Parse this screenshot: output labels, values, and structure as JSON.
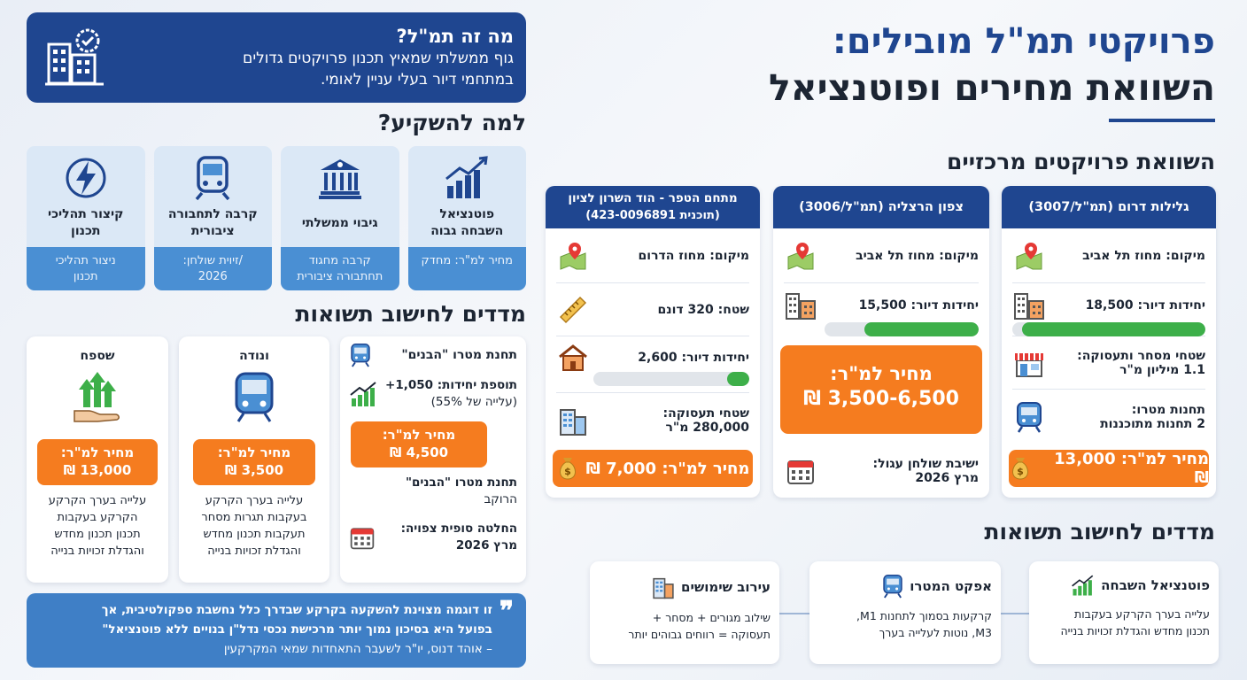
{
  "title": {
    "line1": "פרויקטי תמ\"ל מובילים:",
    "line2": "השוואת מחירים ופוטנציאל"
  },
  "what_is": {
    "heading": "מה זה תמ\"ל?",
    "body_line1": "גוף ממשלתי שמאיץ תכנון פרויקטים גדולים",
    "body_line2": "במתחמי דיור בעלי עניין לאומי."
  },
  "why_invest": {
    "heading": "למה להשקיע?",
    "tiles": [
      {
        "label": "פוטנציאל השבחה גבוה",
        "sub": "מחיר למ\"ר: מחדק",
        "icon": "chart-up-icon"
      },
      {
        "label": "גיבוי ממשלתי",
        "sub": "קרבה מחגוד תחתבורה ציבורית",
        "icon": "government-building-icon"
      },
      {
        "label": "קרבה לתחבורה ציבורית",
        "sub": "/זיוית שולחן: 2026",
        "icon": "train-icon"
      },
      {
        "label": "קיצור תהליכי תכנון",
        "sub": "ניצור תהליכי תכנון",
        "icon": "lightning-icon"
      }
    ]
  },
  "projects": {
    "heading": "השוואת פרויקטים מרכזיים",
    "p1": {
      "title": "גלילות דרום (תמ\"ל/3007)",
      "location": "מיקום: מחוז תל אביב",
      "units": "יחידות דיור: 18,500",
      "units_fill": 0.95,
      "commerce_l1": "שטחי מסחר ותעסוקה:",
      "commerce_l2": "1.1 מיליון מ\"ר",
      "metro_l1": "תחנות מטרו:",
      "metro_l2": "2 תחנות מתוכננות",
      "price": "מחיר למ\"ר: 13,000 ₪"
    },
    "p2": {
      "title": "צפון הרצליה (תמ\"ל/3006)",
      "location": "מיקום: מחוז תל אביב",
      "units": "יחידות דיור: 15,500",
      "units_fill": 0.74,
      "price_l1": "מחיר למ\"ר:",
      "price_l2": "3,500-6,500 ₪",
      "round_l1": "ישיבת שולחן עגול:",
      "round_l2": "מרץ 2026"
    },
    "p3": {
      "title_l1": "מתחם הטפר - הוד השרון לציון",
      "title_l2": "(תוכנית 423-0096891)",
      "location": "מיקום: מחוז הדרום",
      "area": "שטח: 320 דונם",
      "units": "יחידות דיור: 2,600",
      "units_fill": 0.14,
      "employment_l1": "שטחי תעסוקה:",
      "employment_l2": "280,000 מ\"ר",
      "price": "מחיר למ\"ר: 7,000 ₪"
    }
  },
  "metrics_left": {
    "heading": "מדדים לחישוב תשואות",
    "col1": {
      "title": "תחנת מטרו \"הבנים\"",
      "add_l1": "תוספת יחידות: 1,050+",
      "add_l2": "(עלייה של 55%)",
      "price_l1": "מחיר למ\"ר:",
      "price_l2": "4,500 ₪",
      "station_l1": "תחנת מטרו \"הבנים\"",
      "station_l2": "הרוקב",
      "decision_l1": "החלטה סופית צפויה:",
      "decision_l2": "מרץ 2026"
    },
    "col2": {
      "title": "ונודה",
      "price_l1": "מחיר למ\"ר:",
      "price_l2": "3,500 ₪",
      "desc": [
        "עלייה בערך הקרקע",
        "בעקבות תגרות מסחר",
        "תעקבות תכנון מחדש",
        "והגדלת זכויות בנייה"
      ]
    },
    "col3": {
      "title": "שספח",
      "price_l1": "מחיר למ\"ר:",
      "price_l2": "13,000 ₪",
      "desc": [
        "עלייה בערך הקרקע",
        "הקרקע בעקבות",
        "תכנון תכנון מחדש",
        "והגדלת זכויות בנייה"
      ]
    }
  },
  "quote": {
    "line1": "זו דוגמה מצוינת להשקעה בקרקע שבדרך כלל נחשבת ספקולטיבית, אך",
    "line2": "בפועל היא בסיכון נמוך יותר מרכישת נכסי נדל\"ן בנויים ללא פוטנציאל\"",
    "line3": "– אוהד דנוס, יו\"ר לשעבר התאחדות שמאי המקרקעין"
  },
  "metrics_bottom": {
    "heading": "מדדים לחישוב תשואות",
    "items": [
      {
        "title": "פוטנציאל השבחה",
        "l1": "עלייה בערך הקרקע בעקבות",
        "l2": "תכנון מחדש והגדלת זכויות בנייה"
      },
      {
        "title": "אפקט המטרו",
        "l1": "קרקעות בסמוך לתחנות M1,",
        "l2": "M3, נוטות לעלייה בערך"
      },
      {
        "title": "עירוב שימושים",
        "l1": "שילוב מגורים + מסחר +",
        "l2": "תעסוקה = רווחים גבוהים יותר"
      }
    ]
  },
  "colors": {
    "navy": "#1f4690",
    "orange": "#f57c1f",
    "green": "#3daf49",
    "light_blue": "#dbe8f6",
    "mid_blue": "#4a8fd3"
  }
}
